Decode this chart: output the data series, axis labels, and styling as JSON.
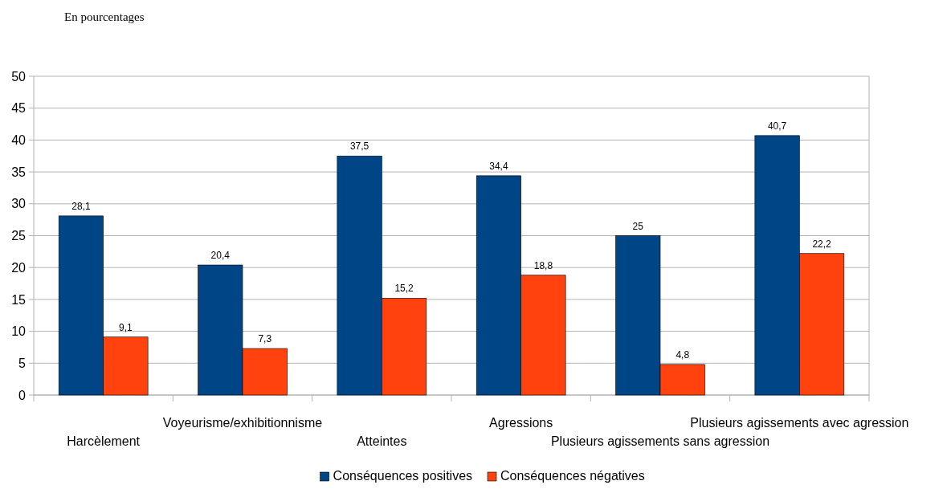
{
  "chart_data": {
    "type": "bar",
    "title": "En pourcentages",
    "categories": [
      "Harcèlement",
      "Voyeurisme/exhibitionnisme",
      "Atteintes",
      "Agressions",
      "Plusieurs agissements sans agression",
      "Plusieurs agissements avec agression"
    ],
    "series": [
      {
        "name": "Conséquences positives",
        "color": "#004586",
        "values": [
          28.1,
          20.4,
          37.5,
          34.4,
          25,
          40.7
        ],
        "value_labels": [
          "28,1",
          "20,4",
          "37,5",
          "34,4",
          "25",
          "40,7"
        ]
      },
      {
        "name": "Conséquences négatives",
        "color": "#ff420e",
        "values": [
          9.1,
          7.3,
          15.2,
          18.8,
          4.8,
          22.2
        ],
        "value_labels": [
          "9,1",
          "7,3",
          "15,2",
          "18,8",
          "4,8",
          "22,2"
        ]
      }
    ],
    "ylim": [
      0,
      50
    ],
    "yticks": [
      0,
      5,
      10,
      15,
      20,
      25,
      30,
      35,
      40,
      45,
      50
    ],
    "grid": "y",
    "legend": "bottom"
  }
}
